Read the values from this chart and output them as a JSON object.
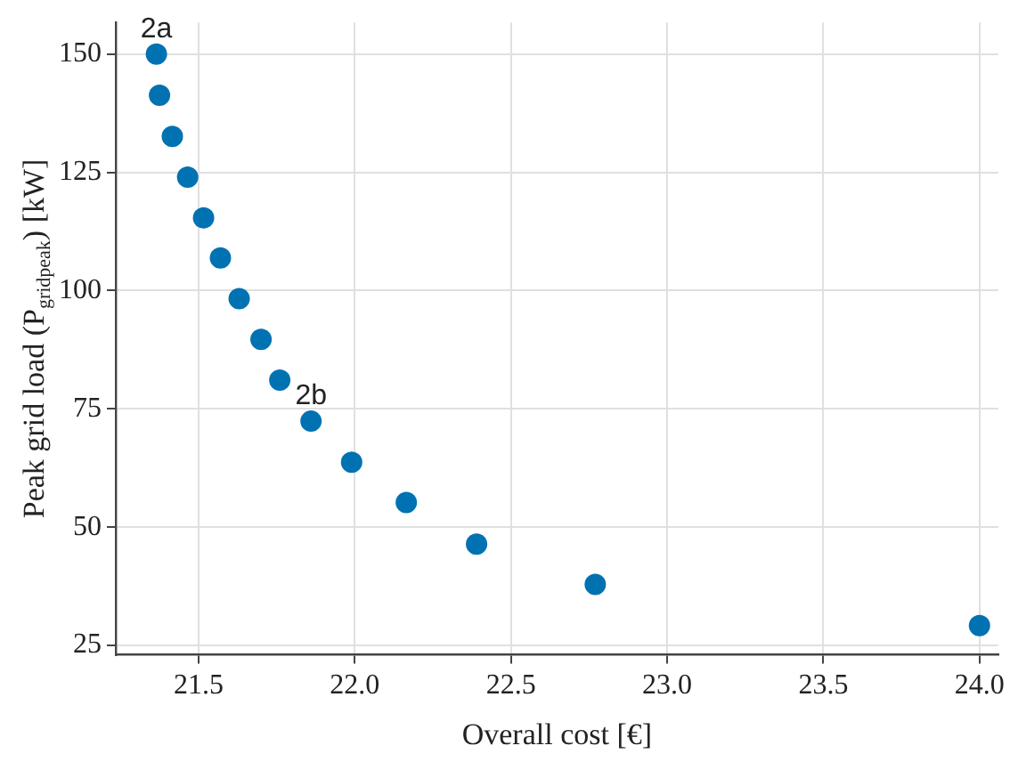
{
  "chart_data": {
    "type": "scatter",
    "xlabel": "Overall cost [€]",
    "ylabel": "Peak grid load (P$_{gridpeak}$) [kW]",
    "x": [
      21.365,
      21.375,
      21.416,
      21.465,
      21.516,
      21.57,
      21.63,
      21.7,
      21.76,
      21.86,
      21.99,
      22.165,
      22.39,
      22.77,
      24.0
    ],
    "series": [
      {
        "color": "#0072b2",
        "values": [
          150,
          141.3,
          132.6,
          124.0,
          115.4,
          106.9,
          98.3,
          89.7,
          81.1,
          72.4,
          63.7,
          55.2,
          46.4,
          37.9,
          29.2
        ]
      }
    ],
    "xlim": [
      21.235,
      24.06
    ],
    "xticks": [
      {
        "value": 21.5,
        "label": "21.5"
      },
      {
        "value": 22,
        "label": "22.0"
      },
      {
        "value": 22.5,
        "label": "22.5"
      },
      {
        "value": 23,
        "label": "23.0"
      },
      {
        "value": 23.5,
        "label": "23.5"
      },
      {
        "value": 24,
        "label": "24.0"
      }
    ],
    "ylim": [
      23,
      156.7
    ],
    "yticks": [
      25,
      50,
      75,
      100,
      125,
      150
    ],
    "annotations": [
      {
        "text": "2a",
        "x": 21.365,
        "y": 150
      },
      {
        "text": "2b",
        "x": 21.86,
        "y": 72.4
      }
    ],
    "grid": true,
    "legend": false,
    "marker": "circle"
  }
}
